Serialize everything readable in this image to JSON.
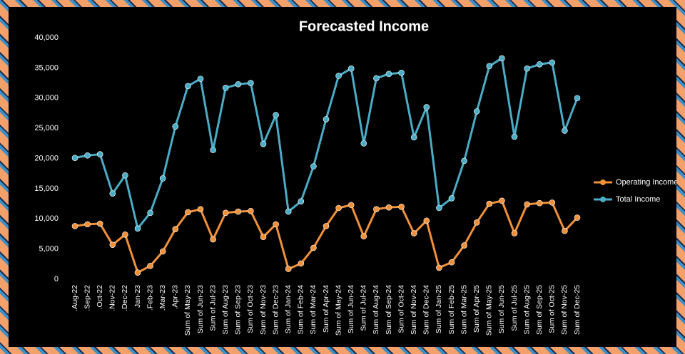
{
  "chart_data": {
    "type": "line",
    "title": "Forecasted Income",
    "categories": [
      ".Aug-22",
      ".Sep-22",
      ".Oct-22",
      ".Nov-22",
      ".Dec-22",
      "Jan-23",
      ".Feb-23",
      ".Mar-23",
      ".Apr-23",
      "Sum of May-23",
      "Sum of Jun-23",
      "Sum of Jul-23",
      "Sum of Aug-23",
      "Sum of Sep-23",
      "Sum of Oct-23",
      "Sum of Nov-23",
      "Sum of Dec-23",
      "Sum of Jan-24",
      "Sum of Feb-24",
      "Sum of Mar-24",
      "Sum of Apr-24",
      "Sum of May-24",
      "Sum of Jun-24",
      "Sum of Jul-24",
      "Sum of Aug-24",
      "Sum of Sep-24",
      "Sum of Oct-24",
      "Sum of Nov-24",
      "Sum of Dec-24",
      "Sum of Jan-25",
      "Sum of Feb-25",
      "Sum of Mar-25",
      "Sum of Apr-25",
      "Sum of May-25",
      "Sum of Jun-25",
      "Sum of Jul-25",
      "Sum of Aug-25",
      "Sum of Sep-25",
      "Sum of Oct-25",
      "Sum of Nov-25",
      "Sum of Dec-25"
    ],
    "series": [
      {
        "name": "Operating Income",
        "color": "#f0913a",
        "values": [
          8800,
          9100,
          9200,
          5700,
          7400,
          1100,
          2200,
          4600,
          8300,
          11100,
          11600,
          6600,
          11000,
          11200,
          11300,
          7000,
          9100,
          1700,
          2600,
          5200,
          8800,
          11800,
          12300,
          7100,
          11600,
          11900,
          12000,
          7600,
          9700,
          1900,
          2800,
          5600,
          9400,
          12500,
          13000,
          7600,
          12400,
          12600,
          12700,
          8000,
          10200
        ]
      },
      {
        "name": "Total Income",
        "color": "#4bacc6",
        "values": [
          20100,
          20500,
          20700,
          14200,
          17200,
          8400,
          11000,
          16700,
          25300,
          32000,
          33200,
          21400,
          31700,
          32300,
          32500,
          22400,
          27200,
          11200,
          12900,
          18700,
          26500,
          33700,
          34900,
          22500,
          33300,
          34000,
          34200,
          23500,
          28500,
          11800,
          13400,
          19600,
          27800,
          35300,
          36600,
          23600,
          34900,
          35600,
          35900,
          24600,
          30000
        ]
      }
    ],
    "ylim": [
      0,
      40000
    ],
    "yticks": [
      0,
      {
        "value": 5000,
        "label": "5,000"
      },
      {
        "value": 10000,
        "label": "10,000"
      },
      {
        "value": 15000,
        "label": "15,000"
      },
      {
        "value": 20000,
        "label": "20,000"
      },
      {
        "value": 25000,
        "label": "25,000"
      },
      {
        "value": 30000,
        "label": "30,000"
      },
      {
        "value": 35000,
        "label": "35,000"
      },
      {
        "value": 40000,
        "label": "40,000"
      }
    ],
    "legend": "right"
  }
}
